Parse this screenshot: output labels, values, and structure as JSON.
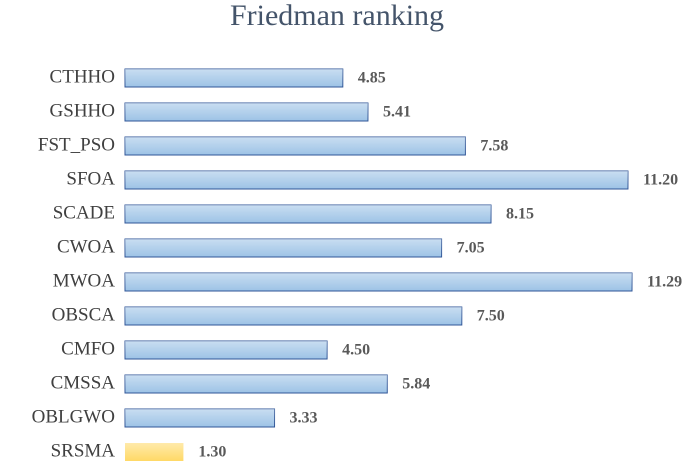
{
  "chart_data": {
    "type": "bar",
    "orientation": "horizontal",
    "title": "Friedman ranking",
    "categories": [
      "CTHHO",
      "GSHHO",
      "FST_PSO",
      "SFOA",
      "SCADE",
      "CWOA",
      "MWOA",
      "OBSCA",
      "CMFO",
      "CMSSA",
      "OBLGWO",
      "SRSMA"
    ],
    "values": [
      4.85,
      5.41,
      7.58,
      11.2,
      8.15,
      7.05,
      11.29,
      7.5,
      4.5,
      5.84,
      3.33,
      1.3
    ],
    "value_labels": [
      "4.85",
      "5.41",
      "7.58",
      "11.20",
      "8.15",
      "7.05",
      "11.29",
      "7.50",
      "4.50",
      "5.84",
      "3.33",
      "1.30"
    ],
    "colors": [
      "#9dc3e6",
      "#9dc3e6",
      "#9dc3e6",
      "#9dc3e6",
      "#9dc3e6",
      "#9dc3e6",
      "#9dc3e6",
      "#9dc3e6",
      "#9dc3e6",
      "#9dc3e6",
      "#9dc3e6",
      "#ffd966"
    ]
  }
}
